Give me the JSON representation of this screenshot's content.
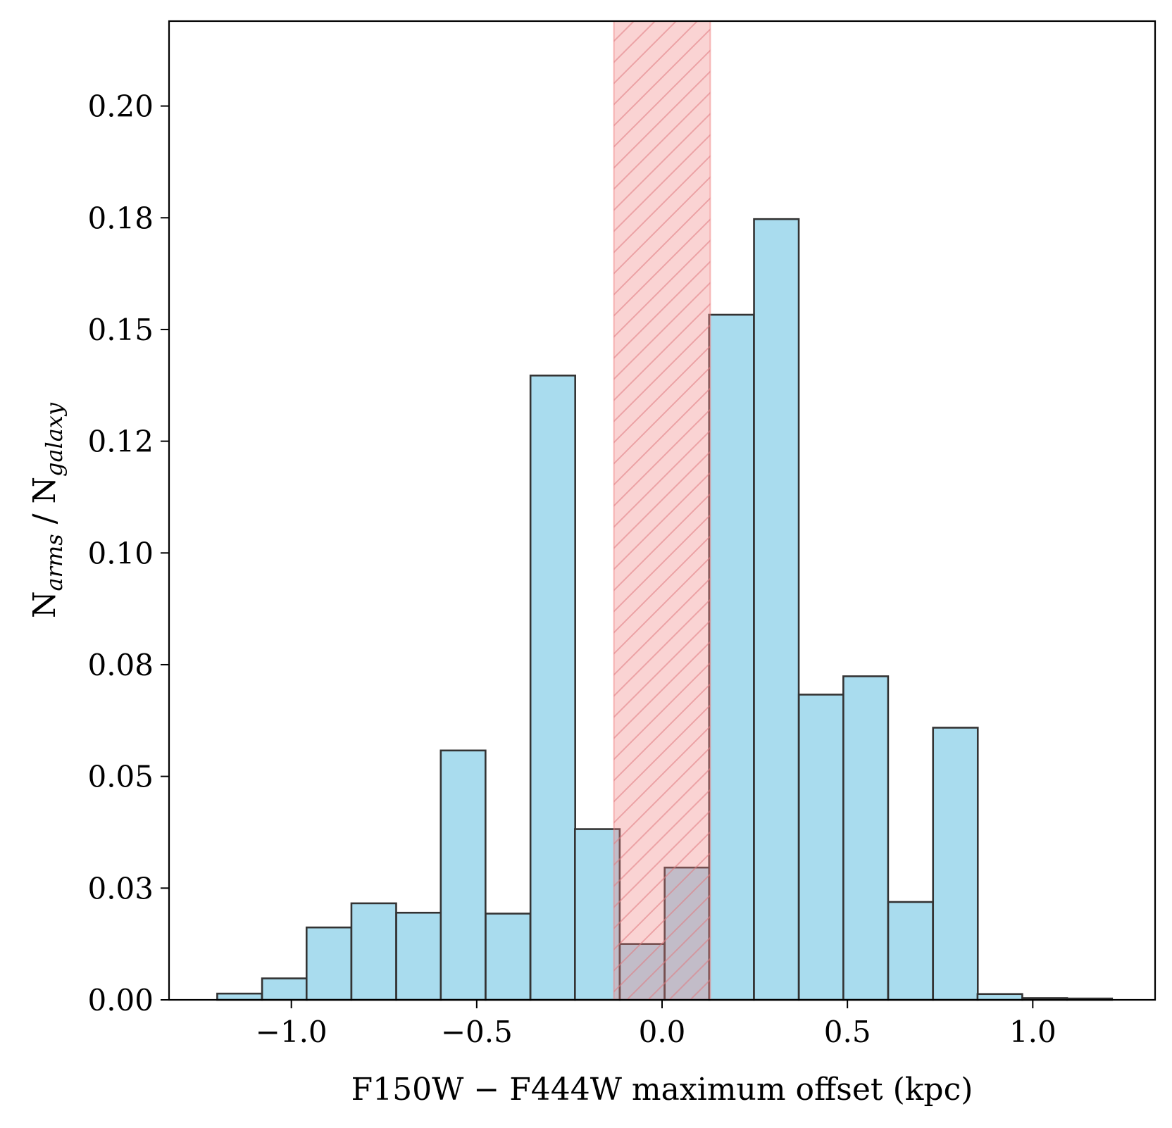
{
  "chart_data": {
    "type": "bar",
    "title": "",
    "xlabel": "F150W − F444W maximum offset (kpc)",
    "ylabel": {
      "main1": "N",
      "sub1": "arms",
      "sep": " / N",
      "sub2": "galaxy"
    },
    "xlim": [
      -1.33,
      1.33
    ],
    "ylim": [
      0,
      0.219
    ],
    "bar_width": 0.1207,
    "bars": [
      {
        "x0": -1.2,
        "value": 0.0014
      },
      {
        "x0": -1.079,
        "value": 0.0048
      },
      {
        "x0": -0.959,
        "value": 0.0162
      },
      {
        "x0": -0.838,
        "value": 0.0216
      },
      {
        "x0": -0.717,
        "value": 0.0195
      },
      {
        "x0": -0.597,
        "value": 0.0558
      },
      {
        "x0": -0.476,
        "value": 0.0193
      },
      {
        "x0": -0.355,
        "value": 0.1397
      },
      {
        "x0": -0.235,
        "value": 0.0382
      },
      {
        "x0": -0.114,
        "value": 0.0125
      },
      {
        "x0": 0.007,
        "value": 0.0296
      },
      {
        "x0": 0.127,
        "value": 0.1533
      },
      {
        "x0": 0.248,
        "value": 0.1747
      },
      {
        "x0": 0.369,
        "value": 0.0683
      },
      {
        "x0": 0.489,
        "value": 0.0724
      },
      {
        "x0": 0.61,
        "value": 0.0219
      },
      {
        "x0": 0.731,
        "value": 0.0609
      },
      {
        "x0": 0.851,
        "value": 0.0013
      },
      {
        "x0": 0.972,
        "value": 0.0004
      },
      {
        "x0": 1.093,
        "value": 0.0003
      }
    ],
    "shaded_region": {
      "x_min": -0.13,
      "x_max": 0.13,
      "color": "#f08080"
    },
    "bar_color": "#a9dcee",
    "edge_color": "#333333",
    "xticks": [
      {
        "value": -1.0,
        "label": "−1.0"
      },
      {
        "value": -0.5,
        "label": "−0.5"
      },
      {
        "value": 0.0,
        "label": "0.0"
      },
      {
        "value": 0.5,
        "label": "0.5"
      },
      {
        "value": 1.0,
        "label": "1.0"
      }
    ],
    "yticks": [
      {
        "value": 0.0,
        "label": "0.00"
      },
      {
        "value": 0.025,
        "label": "0.03"
      },
      {
        "value": 0.05,
        "label": "0.05"
      },
      {
        "value": 0.075,
        "label": "0.08"
      },
      {
        "value": 0.1,
        "label": "0.10"
      },
      {
        "value": 0.125,
        "label": "0.12"
      },
      {
        "value": 0.15,
        "label": "0.15"
      },
      {
        "value": 0.175,
        "label": "0.18"
      },
      {
        "value": 0.2,
        "label": "0.20"
      }
    ],
    "grid": false
  }
}
